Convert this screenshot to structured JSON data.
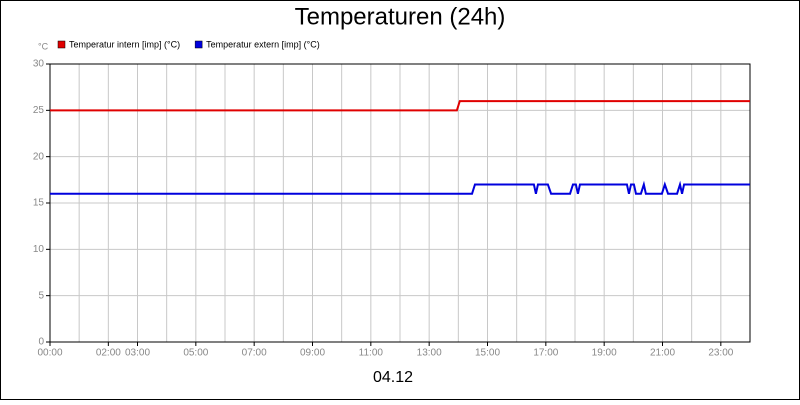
{
  "chart_data": {
    "type": "line",
    "title": "Temperaturen (24h)",
    "xlabel": "04.12",
    "yunit": "°C",
    "xlim": [
      0,
      24
    ],
    "ylim": [
      0,
      30
    ],
    "yticks": [
      0,
      5,
      10,
      15,
      20,
      25,
      30
    ],
    "xticks": [
      {
        "value": 0,
        "label": "00:00"
      },
      {
        "value": 2,
        "label": "02:00"
      },
      {
        "value": 3,
        "label": "03:00"
      },
      {
        "value": 5,
        "label": "05:00"
      },
      {
        "value": 7,
        "label": "07:00"
      },
      {
        "value": 9,
        "label": "09:00"
      },
      {
        "value": 11,
        "label": "11:00"
      },
      {
        "value": 13,
        "label": "13:00"
      },
      {
        "value": 15,
        "label": "15:00"
      },
      {
        "value": 17,
        "label": "17:00"
      },
      {
        "value": 19,
        "label": "19:00"
      },
      {
        "value": 21,
        "label": "21:00"
      },
      {
        "value": 23,
        "label": "23:00"
      }
    ],
    "xgrid": [
      1,
      2,
      3,
      4,
      5,
      6,
      7,
      8,
      9,
      10,
      11,
      12,
      13,
      14,
      15,
      16,
      17,
      18,
      19,
      20,
      21,
      22,
      23
    ],
    "grid": true,
    "series": [
      {
        "name": "Temperatur intern [imp] (°C)",
        "color": "#e00000",
        "x": [
          0,
          13.95,
          14.05,
          24
        ],
        "values": [
          25,
          25,
          26,
          26
        ]
      },
      {
        "name": "Temperatur extern [imp] (°C)",
        "color": "#0000dd",
        "x": [
          0,
          14.47,
          14.57,
          16.59,
          16.66,
          16.73,
          17.07,
          17.18,
          17.83,
          17.93,
          18.03,
          18.1,
          18.17,
          19.78,
          19.85,
          19.92,
          20.02,
          20.09,
          20.26,
          20.36,
          20.43,
          20.98,
          21.08,
          21.19,
          21.5,
          21.6,
          21.67,
          21.74,
          24
        ],
        "values": [
          16,
          16,
          17,
          17,
          16,
          17,
          17,
          16,
          16,
          17,
          17,
          16,
          17,
          17,
          16,
          17,
          17,
          16,
          16,
          17,
          16,
          16,
          17,
          16,
          16,
          17,
          16,
          17,
          17
        ]
      }
    ]
  }
}
